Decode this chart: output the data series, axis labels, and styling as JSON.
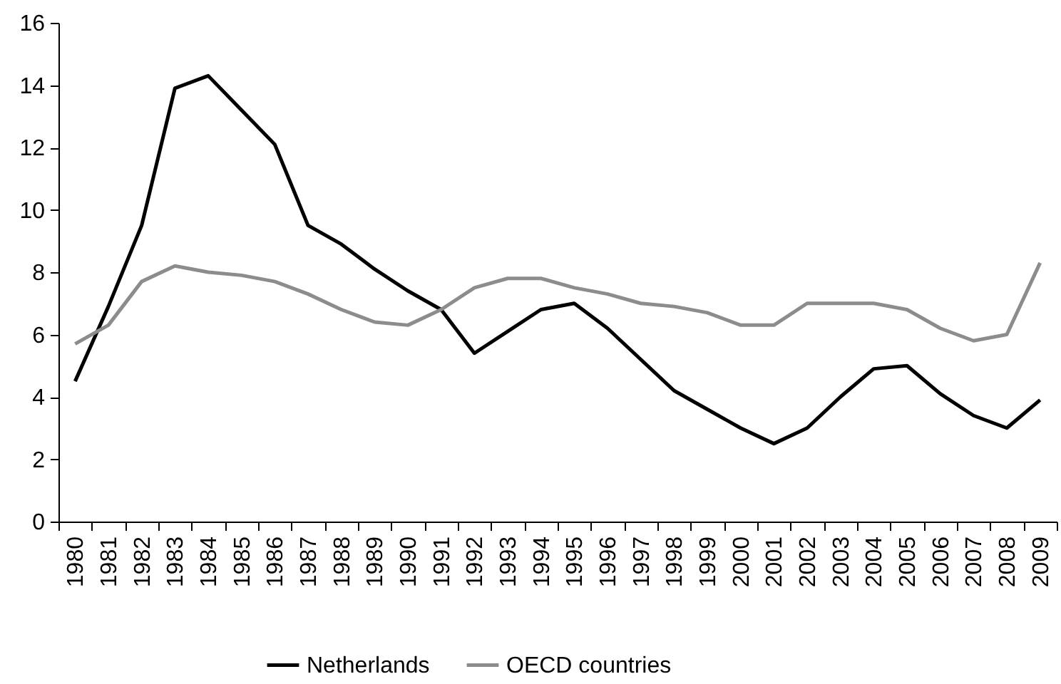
{
  "chart_data": {
    "type": "line",
    "categories": [
      "1980",
      "1981",
      "1982",
      "1983",
      "1984",
      "1985",
      "1986",
      "1987",
      "1988",
      "1989",
      "1990",
      "1991",
      "1992",
      "1993",
      "1994",
      "1995",
      "1996",
      "1997",
      "1998",
      "1999",
      "2000",
      "2001",
      "2002",
      "2003",
      "2004",
      "2005",
      "2006",
      "2007",
      "2008",
      "2009"
    ],
    "series": [
      {
        "name": "Netherlands",
        "color": "#000000",
        "values": [
          4.5,
          6.9,
          9.5,
          13.9,
          14.3,
          13.2,
          12.1,
          9.5,
          8.9,
          8.1,
          7.4,
          6.8,
          5.4,
          6.1,
          6.8,
          7.0,
          6.2,
          5.2,
          4.2,
          3.6,
          3.0,
          2.5,
          3.0,
          4.0,
          4.9,
          5.0,
          4.1,
          3.4,
          3.0,
          3.9
        ]
      },
      {
        "name": "OECD countries",
        "color": "#8c8c8c",
        "values": [
          5.7,
          6.3,
          7.7,
          8.2,
          8.0,
          7.9,
          7.7,
          7.3,
          6.8,
          6.4,
          6.3,
          6.8,
          7.5,
          7.8,
          7.8,
          7.5,
          7.3,
          7.0,
          6.9,
          6.7,
          6.3,
          6.3,
          7.0,
          7.0,
          7.0,
          6.8,
          6.2,
          5.8,
          6.0,
          8.3
        ]
      }
    ],
    "ylim": [
      0,
      16
    ],
    "yticks": [
      0,
      2,
      4,
      6,
      8,
      10,
      12,
      14,
      16
    ],
    "grid": false,
    "legend": "bottom",
    "marker": "none",
    "line_style": "solid"
  }
}
